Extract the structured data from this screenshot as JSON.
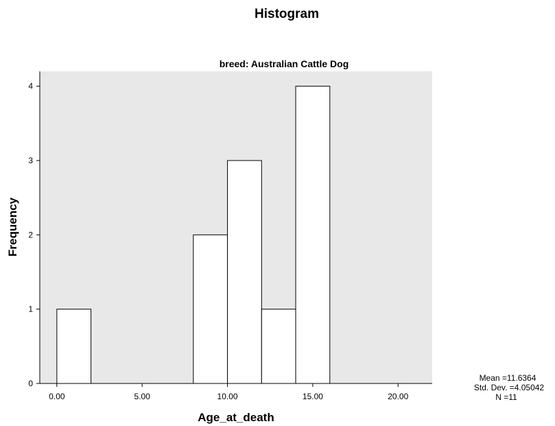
{
  "chart_data": {
    "type": "bar",
    "title": "Histogram",
    "subtitle": "breed: Australian Cattle Dog",
    "xlabel": "Age_at_death",
    "ylabel": "Frequency",
    "bin_width": 2,
    "bins": [
      {
        "start": 0,
        "end": 2,
        "count": 1
      },
      {
        "start": 8,
        "end": 10,
        "count": 2
      },
      {
        "start": 10,
        "end": 12,
        "count": 3
      },
      {
        "start": 12,
        "end": 14,
        "count": 1
      },
      {
        "start": 14,
        "end": 16,
        "count": 4
      }
    ],
    "xlim": [
      -1,
      22
    ],
    "ylim": [
      0,
      4.2
    ],
    "xticks": [
      "0.00",
      "5.00",
      "10.00",
      "15.00",
      "20.00"
    ],
    "xtick_values": [
      0,
      5,
      10,
      15,
      20
    ],
    "yticks": [
      "0",
      "1",
      "2",
      "3",
      "4"
    ],
    "ytick_values": [
      0,
      1,
      2,
      3,
      4
    ],
    "grid": false,
    "stats": {
      "mean": "Mean =11.6364",
      "std": "Std. Dev. =4.05042",
      "n": "N =11"
    }
  },
  "colors": {
    "plot_background": "#e8e8e8",
    "bar_fill": "#ffffff",
    "bar_stroke": "#000000"
  }
}
